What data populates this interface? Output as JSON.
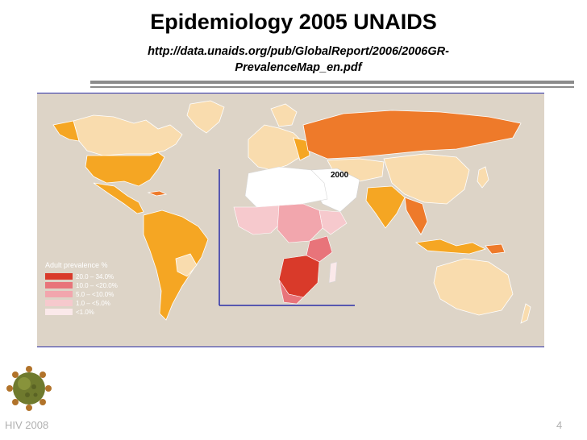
{
  "slide": {
    "title": "Epidemiology 2005 UNAIDS",
    "subtitle": "http://data.unaids.org/pub/GlobalReport/2006/2006GR-PrevalenceMap_en.pdf",
    "footer_left": "HIV 2008",
    "page_number": "4"
  },
  "map": {
    "inset_label": "2000",
    "legend": {
      "title": "Adult prevalence %",
      "items": [
        {
          "label": "20.0  –  34.0%",
          "color": "#d93a2a"
        },
        {
          "label": "10.0  – <20.0%",
          "color": "#e8747a"
        },
        {
          "label": "5.0  – <10.0%",
          "color": "#f2a6ad"
        },
        {
          "label": "1.0  – <5.0%",
          "color": "#f6c9cd"
        },
        {
          "label": "<1.0%",
          "color": "#fbe9ea"
        }
      ]
    },
    "colors": {
      "ocean": "#ddd4c7",
      "orange_dark": "#ee7a2a",
      "orange": "#f5a623",
      "light": "#f9dcae",
      "inset_axis": "#2b2fa8"
    }
  },
  "icons": {
    "virus": "virus-icon"
  }
}
